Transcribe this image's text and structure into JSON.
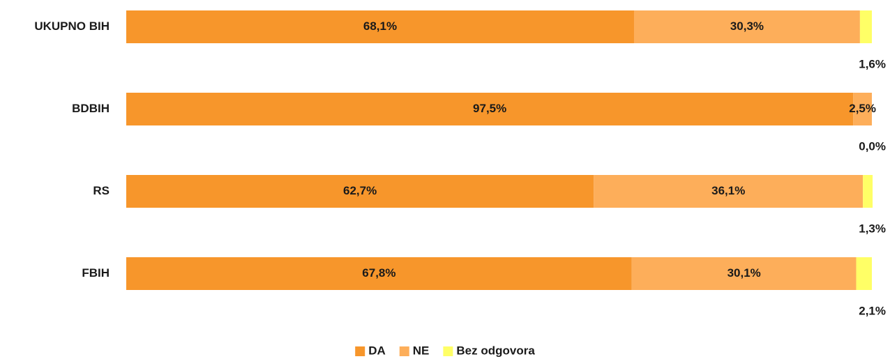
{
  "chart_data": {
    "type": "stacked-bar-horizontal",
    "categories": [
      "UKUPNO BIH",
      "BDBIH",
      "RS",
      "FBIH"
    ],
    "series": [
      {
        "name": "DA",
        "color": "#f7962b",
        "values": [
          68.1,
          97.5,
          62.7,
          67.8
        ],
        "value_labels": [
          "68,1%",
          "97,5%",
          "62,7%",
          "67,8%"
        ]
      },
      {
        "name": "NE",
        "color": "#fdae5a",
        "values": [
          30.3,
          2.5,
          36.1,
          30.1
        ],
        "value_labels": [
          "30,3%",
          "2,5%",
          "36,1%",
          "30,1%"
        ]
      },
      {
        "name": "Bez odgovora",
        "color": "#ffff66",
        "values": [
          1.6,
          0.0,
          1.3,
          2.1
        ],
        "value_labels": [
          "1,6%",
          "0,0%",
          "1,3%",
          "2,1%"
        ]
      }
    ],
    "xlim": [
      0,
      100
    ],
    "legend": "bottom"
  }
}
